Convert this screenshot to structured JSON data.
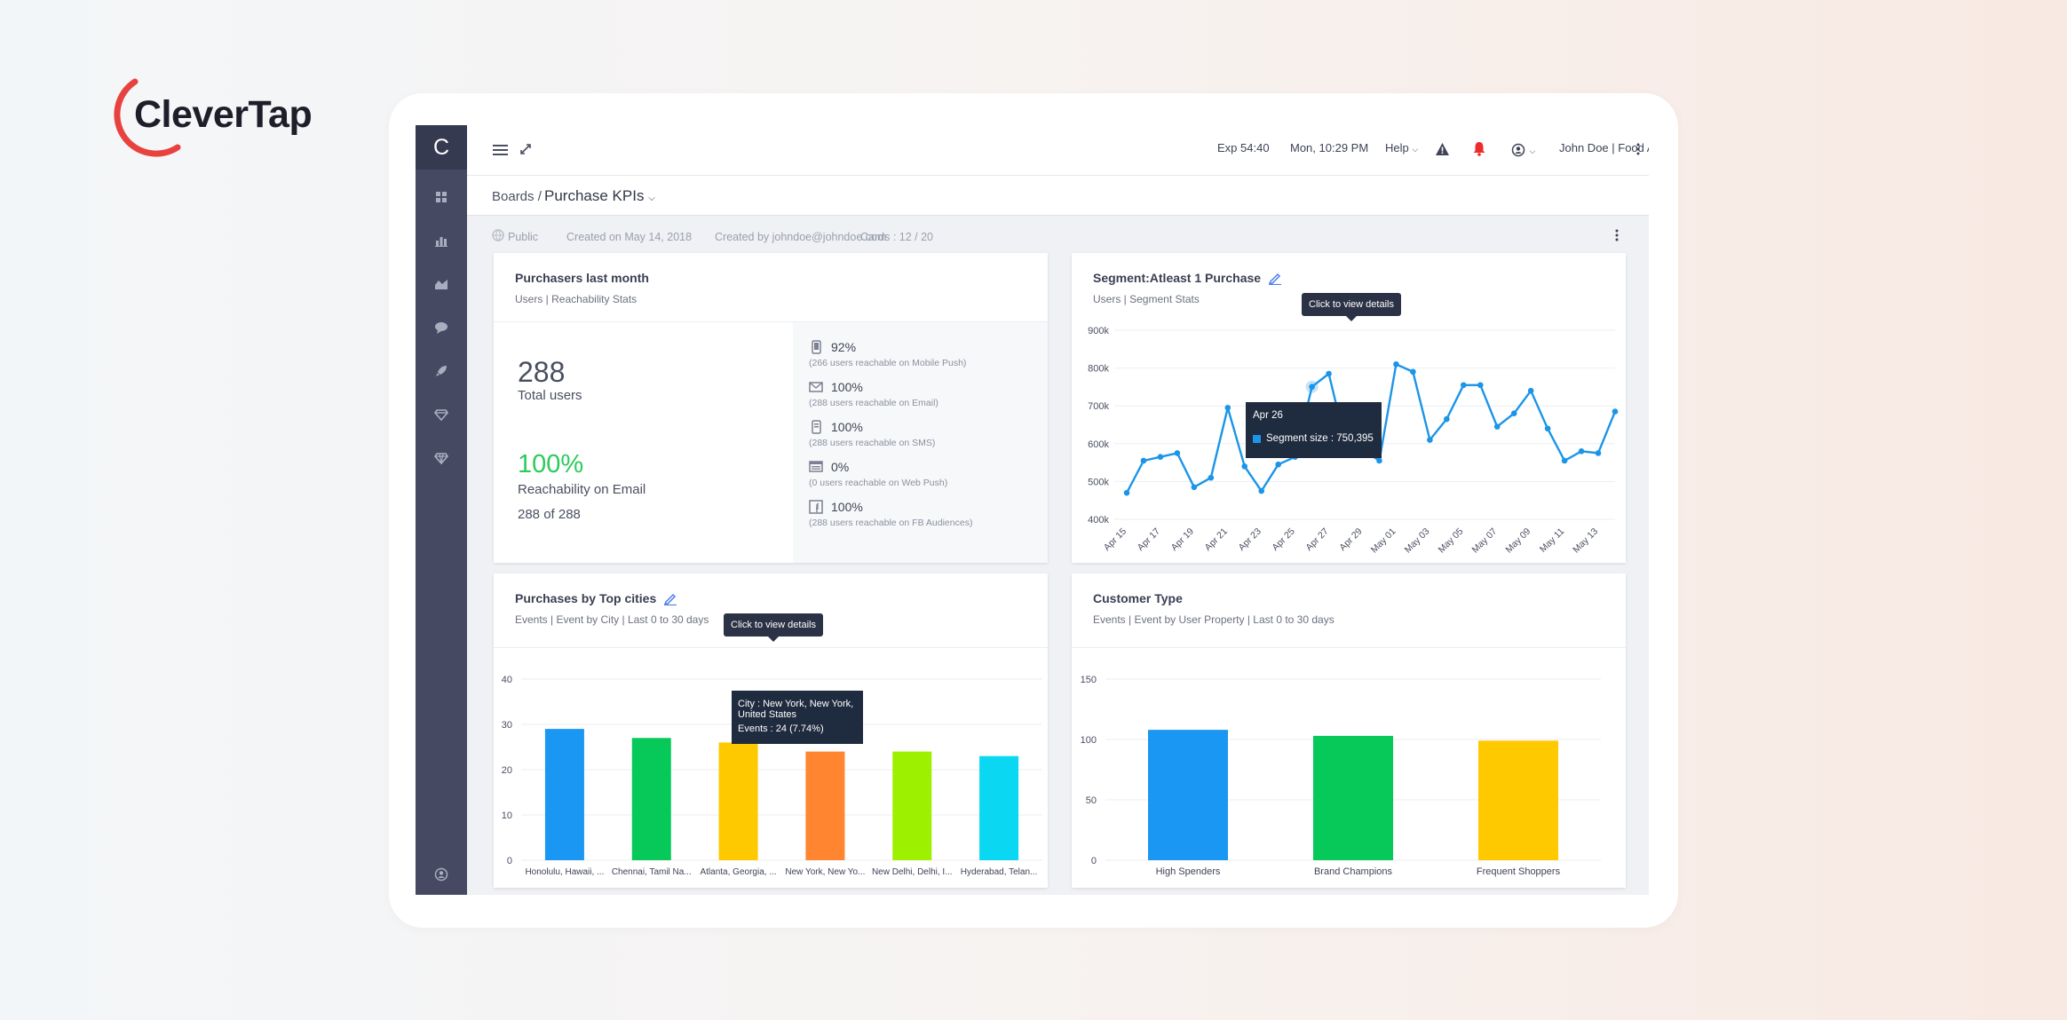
{
  "brand": {
    "name": "CleverTap",
    "accent": "#e8423f"
  },
  "sidebar": {
    "logo": "C",
    "items": [
      {
        "icon": "dashboard-icon"
      },
      {
        "icon": "analytics-icon"
      },
      {
        "icon": "area-chart-icon"
      },
      {
        "icon": "chat-icon"
      },
      {
        "icon": "rocket-icon"
      },
      {
        "icon": "gem-icon"
      },
      {
        "icon": "gem-outline-icon"
      }
    ],
    "bottom_icon": "user-circle-icon"
  },
  "topbar": {
    "exp": "Exp 54:40",
    "datetime": "Mon, 10:29 PM",
    "help": "Help",
    "account": "John Doe | Food App"
  },
  "breadcrumb": {
    "root": "Boards /",
    "current": "Purchase KPIs"
  },
  "meta": {
    "visibility": "Public",
    "created_on": "Created on May 14, 2018",
    "created_by": "Created by johndoe@johndoe.com",
    "cards": "Cards : 12 / 20"
  },
  "cards": {
    "purchasers": {
      "title": "Purchasers last month",
      "subtitle": "Users | Reachability Stats",
      "total": "288",
      "total_label": "Total users",
      "reach_pct": "100%",
      "reach_label": "Reachability on Email",
      "reach_of": "288 of 288",
      "channels": [
        {
          "icon": "mobile-icon",
          "value": "92%",
          "note": "(266 users reachable on Mobile Push)"
        },
        {
          "icon": "email-icon",
          "value": "100%",
          "note": "(288 users reachable on Email)"
        },
        {
          "icon": "sms-icon",
          "value": "100%",
          "note": "(288 users reachable on SMS)"
        },
        {
          "icon": "web-push-icon",
          "value": "0%",
          "note": "(0 users reachable on Web Push)"
        },
        {
          "icon": "facebook-icon",
          "value": "100%",
          "note": "(288 users reachable on FB Audiences)"
        }
      ]
    },
    "segment": {
      "title": "Segment:Atleast 1 Purchase",
      "subtitle": "Users | Segment Stats",
      "hint": "Click to view details",
      "tooltip_date": "Apr 26",
      "tooltip_value": "Segment size : 750,395"
    },
    "cities": {
      "title": "Purchases by Top cities",
      "subtitle": "Events | Event by City | Last 0 to 30 days",
      "hint": "Click to view details",
      "tooltip_city": "City : New York, New York, United States",
      "tooltip_events": "Events : 24 (7.74%)"
    },
    "customer_type": {
      "title": "Customer Type",
      "subtitle": "Events | Event by User Property | Last 0 to 30 days"
    }
  },
  "chart_data": [
    {
      "type": "line",
      "title": "Segment:Atleast 1 Purchase",
      "x_ticks": [
        "Apr 15",
        "Apr 17",
        "Apr 19",
        "Apr 21",
        "Apr 23",
        "Apr 25",
        "Apr 27",
        "Apr 29",
        "May 01",
        "May 03",
        "May 05",
        "May 07",
        "May 09",
        "May 11",
        "May 13"
      ],
      "y_ticks": [
        "400k",
        "500k",
        "600k",
        "700k",
        "800k",
        "900k"
      ],
      "ylim": [
        400000,
        900000
      ],
      "series": [
        {
          "color": "#1b95e8",
          "values": [
            470000,
            555000,
            565000,
            575000,
            485000,
            510000,
            695000,
            540000,
            475000,
            545000,
            565000,
            750395,
            785000,
            600000,
            585000,
            555000,
            810000,
            790000,
            610000,
            665000,
            755000,
            755000,
            645000,
            680000,
            740000,
            640000,
            555000,
            580000,
            575000,
            685000
          ]
        }
      ]
    },
    {
      "type": "bar",
      "title": "Purchases by Top cities",
      "categories": [
        "Honolulu, Hawaii, ...",
        "Chennai, Tamil Na...",
        "Atlanta, Georgia, ...",
        "New York, New Yo...",
        "New Delhi, Delhi, I...",
        "Hyderabad, Telan..."
      ],
      "values": [
        29,
        27,
        26,
        24,
        24,
        23
      ],
      "colors": [
        "#1a97f3",
        "#06c95a",
        "#ffc900",
        "#ff8530",
        "#9cf000",
        "#0ad8f2"
      ],
      "y_ticks": [
        "0",
        "10",
        "20",
        "30",
        "40"
      ],
      "ylim": [
        0,
        40
      ]
    },
    {
      "type": "bar",
      "title": "Customer Type",
      "categories": [
        "High Spenders",
        "Brand Champions",
        "Frequent Shoppers"
      ],
      "values": [
        108,
        103,
        99
      ],
      "colors": [
        "#1a97f3",
        "#06c95a",
        "#ffc900"
      ],
      "y_ticks": [
        "0",
        "50",
        "100",
        "150"
      ],
      "ylim": [
        0,
        150
      ]
    }
  ]
}
